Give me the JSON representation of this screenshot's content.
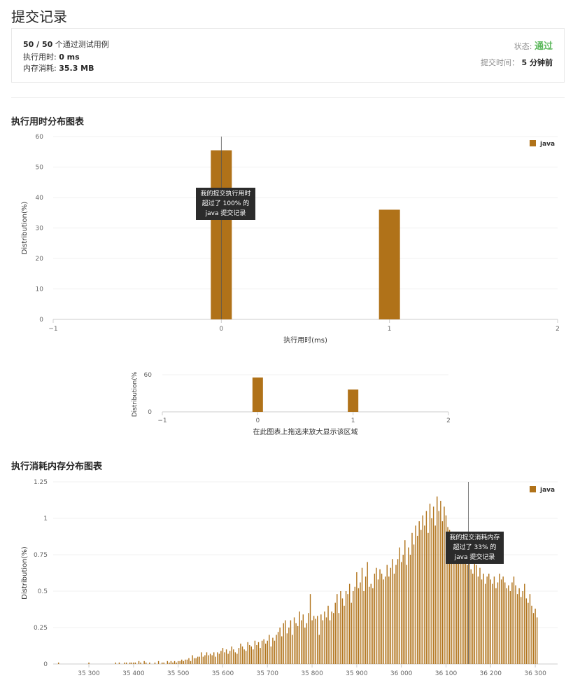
{
  "page_title": "提交记录",
  "summary": {
    "passed": "50 / 50",
    "passed_suffix": " 个通过测试用例",
    "runtime_label": "执行用时: ",
    "runtime_value": "0 ms",
    "memory_label": "内存消耗: ",
    "memory_value": "35.3 MB",
    "status_label": "状态: ",
    "status_value": "通过",
    "submit_time_label": "提交时间： ",
    "submit_time_value": "5 分钟前"
  },
  "colors": {
    "bar": "#b07219",
    "status_ok": "#5cb85c",
    "tooltip_bg": "#2b2b2b"
  },
  "chart_titles": {
    "runtime": "执行用时分布图表",
    "memory": "执行消耗内存分布图表"
  },
  "navigator_hint": "在此图表上拖选来放大显示该区域",
  "tooltips": {
    "runtime": [
      "我的提交执行用时",
      "超过了 100% 的",
      "java 提交记录"
    ],
    "memory": [
      "我的提交消耗内存",
      "超过了 33% 的",
      "java 提交记录"
    ]
  },
  "chart_data": [
    {
      "type": "bar",
      "title": "",
      "xlabel": "执行用时(ms)",
      "ylabel": "Distribution(%)",
      "legend": "java",
      "legend_position": "top-right",
      "grid": true,
      "x": [
        0,
        1
      ],
      "values": [
        55.5,
        36
      ],
      "xlim": [
        -1,
        2
      ],
      "ylim": [
        0,
        60
      ],
      "xticks": [
        "−1",
        "0",
        "1",
        "2"
      ],
      "yticks": [
        "0",
        "10",
        "20",
        "30",
        "40",
        "50",
        "60"
      ],
      "marker_x": 0
    },
    {
      "type": "bar",
      "title": "",
      "xlabel": "",
      "ylabel": "Distribution(%",
      "x": [
        0,
        1
      ],
      "values": [
        55.5,
        36
      ],
      "xlim": [
        -1,
        2
      ],
      "ylim": [
        0,
        60
      ],
      "xticks": [
        "−1",
        "0",
        "1",
        "2"
      ],
      "yticks": [
        "0",
        "60"
      ]
    },
    {
      "type": "bar",
      "title": "",
      "xlabel": "",
      "ylabel": "Distribution(%)",
      "legend": "java",
      "legend_position": "top-right",
      "grid": true,
      "xlim": [
        35220,
        35350
      ],
      "xlim_display": [
        35220,
        36350
      ],
      "ylim": [
        0,
        1.25
      ],
      "xticks": [
        "35 300",
        "35 400",
        "35 500",
        "35 600",
        "35 700",
        "35 800",
        "35 900",
        "36 000",
        "36 100",
        "36 200",
        "36 300"
      ],
      "yticks": [
        "0",
        "0.25",
        "0.5",
        "0.75",
        "1",
        "1.25"
      ],
      "x_start": 35220,
      "x_step": 4,
      "marker_x": 36150,
      "values": [
        0,
        0,
        0,
        0.01,
        0,
        0,
        0,
        0,
        0,
        0,
        0,
        0,
        0,
        0,
        0,
        0,
        0,
        0,
        0,
        0,
        0.01,
        0,
        0,
        0,
        0,
        0,
        0,
        0,
        0,
        0,
        0,
        0,
        0,
        0,
        0,
        0.01,
        0,
        0.01,
        0,
        0,
        0.01,
        0.01,
        0,
        0.01,
        0.01,
        0.01,
        0.01,
        0,
        0.02,
        0.01,
        0,
        0.02,
        0.01,
        0,
        0.01,
        0,
        0,
        0.01,
        0,
        0.02,
        0,
        0.01,
        0.01,
        0,
        0.02,
        0.01,
        0.02,
        0.01,
        0.02,
        0.01,
        0.02,
        0.02,
        0.03,
        0.02,
        0.03,
        0.03,
        0.04,
        0.02,
        0.06,
        0.04,
        0.04,
        0.05,
        0.05,
        0.08,
        0.05,
        0.06,
        0.08,
        0.06,
        0.07,
        0.06,
        0.08,
        0.05,
        0.08,
        0.07,
        0.09,
        0.11,
        0.08,
        0.1,
        0.07,
        0.09,
        0.12,
        0.1,
        0.08,
        0.07,
        0.11,
        0.14,
        0.12,
        0.1,
        0.09,
        0.15,
        0.13,
        0.12,
        0.1,
        0.16,
        0.13,
        0.15,
        0.11,
        0.16,
        0.17,
        0.14,
        0.16,
        0.2,
        0.12,
        0.18,
        0.16,
        0.2,
        0.22,
        0.25,
        0.19,
        0.28,
        0.3,
        0.21,
        0.25,
        0.3,
        0.2,
        0.32,
        0.28,
        0.26,
        0.36,
        0.3,
        0.34,
        0.25,
        0.28,
        0.35,
        0.48,
        0.3,
        0.33,
        0.31,
        0.33,
        0.2,
        0.34,
        0.3,
        0.36,
        0.32,
        0.4,
        0.3,
        0.36,
        0.35,
        0.42,
        0.48,
        0.35,
        0.5,
        0.45,
        0.4,
        0.5,
        0.48,
        0.55,
        0.42,
        0.5,
        0.53,
        0.63,
        0.52,
        0.56,
        0.66,
        0.5,
        0.6,
        0.7,
        0.53,
        0.55,
        0.52,
        0.62,
        0.66,
        0.58,
        0.65,
        0.62,
        0.58,
        0.6,
        0.68,
        0.6,
        0.66,
        0.72,
        0.62,
        0.68,
        0.72,
        0.8,
        0.7,
        0.75,
        0.85,
        0.68,
        0.8,
        0.75,
        0.9,
        0.82,
        0.95,
        0.88,
        0.98,
        0.92,
        1.02,
        0.95,
        1.05,
        0.9,
        1.1,
        1.0,
        1.08,
        0.95,
        1.15,
        1.05,
        1.12,
        0.98,
        1.08,
        1.02,
        0.94,
        0.92,
        0.86,
        0.9,
        0.82,
        0.78,
        0.85,
        0.8,
        0.72,
        0.76,
        0.7,
        0.68,
        0.72,
        0.65,
        0.62,
        0.7,
        0.68,
        0.6,
        0.66,
        0.58,
        0.62,
        0.55,
        0.6,
        0.62,
        0.58,
        0.55,
        0.6,
        0.52,
        0.56,
        0.62,
        0.58,
        0.6,
        0.56,
        0.52,
        0.54,
        0.5,
        0.56,
        0.6,
        0.54,
        0.48,
        0.52,
        0.46,
        0.5,
        0.55,
        0.45,
        0.42,
        0.48,
        0.4,
        0.35,
        0.38,
        0.32
      ]
    }
  ]
}
